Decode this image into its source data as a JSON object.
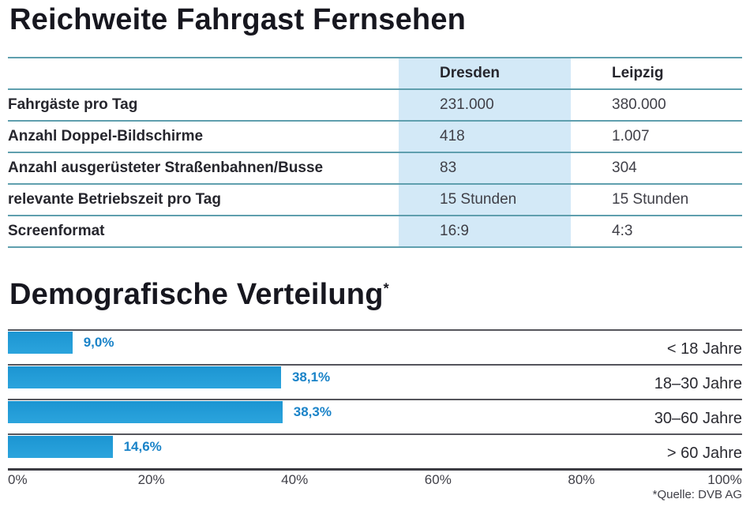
{
  "page": {
    "title": "Reichweite Fahrgast Fernsehen",
    "section2_title": "Demografische Verteilung",
    "section2_footnote_marker": "*",
    "source_note": "*Quelle: DVB AG"
  },
  "table": {
    "header": {
      "col1": "Dresden",
      "col2": "Leipzig"
    },
    "highlight_column": "Dresden",
    "highlight_color": "#d3e9f7",
    "separator_color": "#5f9fae",
    "rows": [
      {
        "label": "Fahrgäste pro Tag",
        "dresden": "231.000",
        "leipzig": "380.000"
      },
      {
        "label": "Anzahl Doppel-Bildschirme",
        "dresden": "418",
        "leipzig": "1.007"
      },
      {
        "label": "Anzahl ausgerüsteter Straßenbahnen/Busse",
        "dresden": "83",
        "leipzig": "304"
      },
      {
        "label": "relevante Betriebszeit pro Tag",
        "dresden": "15 Stunden",
        "leipzig": "15 Stunden"
      },
      {
        "label": "Screenformat",
        "dresden": "16:9",
        "leipzig": "4:3"
      }
    ]
  },
  "chart_data": {
    "type": "bar",
    "orientation": "horizontal",
    "title": "Demografische Verteilung",
    "categories": [
      "< 18 Jahre",
      "18–30 Jahre",
      "30–60 Jahre",
      "> 60 Jahre"
    ],
    "values": [
      9.0,
      38.1,
      38.3,
      14.6
    ],
    "value_labels": [
      "9,0%",
      "38,1%",
      "38,3%",
      "14,6%"
    ],
    "x_ticks": [
      "0%",
      "20%",
      "40%",
      "60%",
      "80%",
      "100%"
    ],
    "xlim": [
      0,
      100
    ],
    "grid": false,
    "legend": false,
    "bar_color": "#1f9ad7",
    "value_label_color": "#1a83c8",
    "source": "*Quelle: DVB AG"
  }
}
